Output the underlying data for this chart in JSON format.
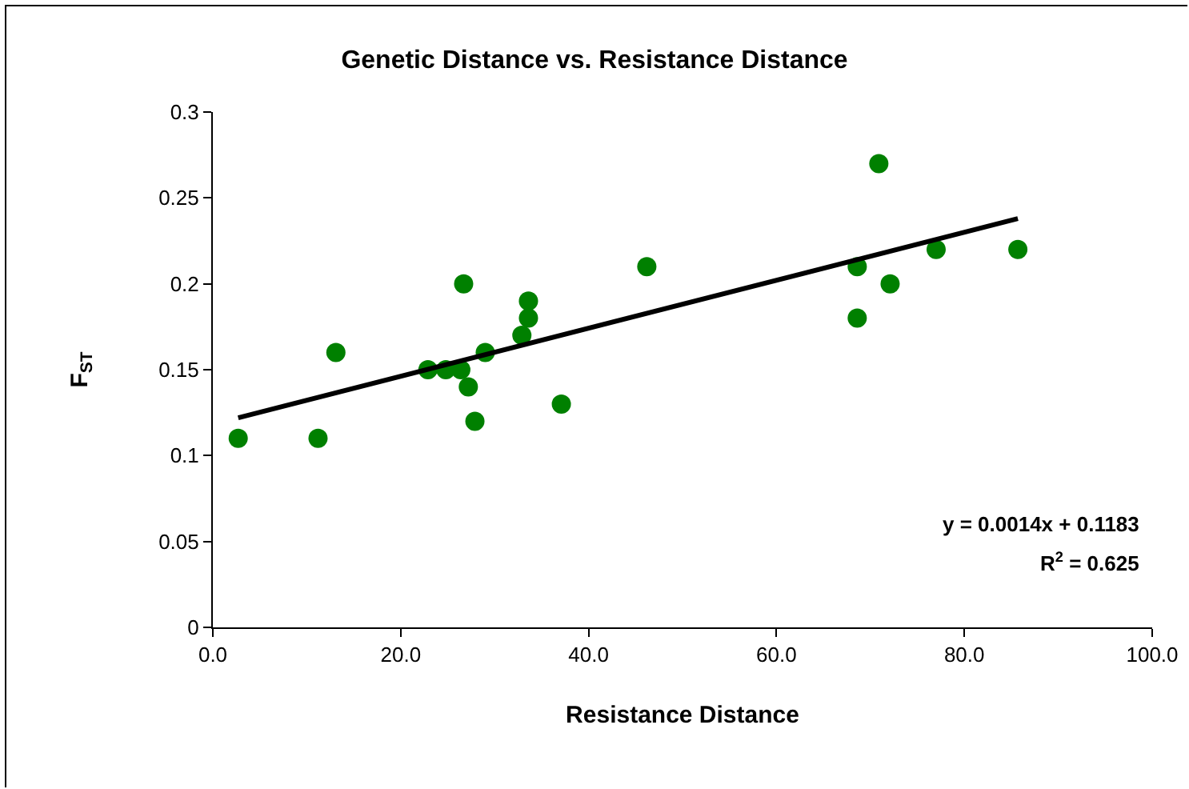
{
  "chart_data": {
    "type": "scatter",
    "title": "Genetic Distance vs. Resistance Distance",
    "xlabel": "Resistance Distance",
    "ylabel": "F$_{ST}$",
    "series": [
      {
        "color": "#008000",
        "marker": "circle",
        "x": [
          2.7,
          11.2,
          13.1,
          22.9,
          24.8,
          26.4,
          26.7,
          27.2,
          27.9,
          29.0,
          32.9,
          33.6,
          33.6,
          37.1,
          46.2,
          68.6,
          68.6,
          70.9,
          72.1,
          77.0,
          85.7
        ],
        "values": [
          0.11,
          0.11,
          0.16,
          0.15,
          0.15,
          0.15,
          0.2,
          0.14,
          0.12,
          0.16,
          0.17,
          0.18,
          0.19,
          0.13,
          0.21,
          0.21,
          0.18,
          0.27,
          0.2,
          0.22,
          0.22
        ]
      },
      {
        "type": "line",
        "color": "#000000",
        "line_style": "solid",
        "x": [
          2.7,
          85.7
        ],
        "values": [
          0.122,
          0.238
        ]
      }
    ],
    "xlim": [
      0,
      100
    ],
    "xticks": [
      {
        "value": 0,
        "label": "0.0"
      },
      {
        "value": 20,
        "label": "20.0"
      },
      {
        "value": 40,
        "label": "40.0"
      },
      {
        "value": 60,
        "label": "60.0"
      },
      {
        "value": 80,
        "label": "80.0"
      },
      {
        "value": 100,
        "label": "100.0"
      }
    ],
    "ylim": [
      0,
      0.3
    ],
    "yticks": [
      0,
      0.05,
      0.1,
      0.15,
      0.2,
      0.25,
      0.3
    ],
    "grid": false,
    "legend": false,
    "annotations": [
      "y = 0.0014x + 0.1183",
      "R$^{2}$ = 0.625"
    ]
  }
}
